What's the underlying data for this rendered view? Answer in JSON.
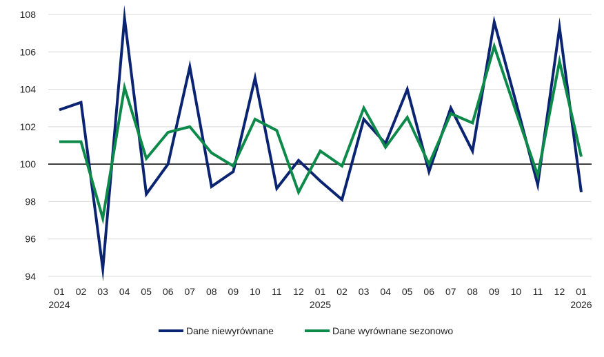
{
  "chart_data": {
    "type": "line",
    "title": "",
    "xlabel": "",
    "ylabel": "",
    "ylim": [
      94,
      108
    ],
    "yticks": [
      94,
      96,
      98,
      100,
      102,
      104,
      106,
      108
    ],
    "baseline": 100,
    "grid": true,
    "legend_position": "bottom",
    "categories": [
      "01",
      "02",
      "03",
      "04",
      "05",
      "06",
      "07",
      "08",
      "09",
      "10",
      "11",
      "12",
      "01",
      "02",
      "03",
      "04",
      "05",
      "06",
      "07",
      "08",
      "09",
      "10",
      "11",
      "12",
      "01"
    ],
    "year_labels": [
      {
        "index": 0,
        "label": "2024"
      },
      {
        "index": 12,
        "label": "2025"
      },
      {
        "index": 24,
        "label": "2026"
      }
    ],
    "series": [
      {
        "name": "Dane niewyrównane",
        "color": "#0a2472",
        "values": [
          102.9,
          103.3,
          94.4,
          107.8,
          98.4,
          100.0,
          105.2,
          98.8,
          99.6,
          104.6,
          98.7,
          100.2,
          99.1,
          98.1,
          102.4,
          101.1,
          104.0,
          99.6,
          103.0,
          100.7,
          107.6,
          103.3,
          98.9,
          107.3,
          98.5
        ]
      },
      {
        "name": "Dane wyrównane sezonowo",
        "color": "#0d8a4a",
        "values": [
          101.2,
          101.2,
          97.1,
          104.1,
          100.3,
          101.7,
          102.0,
          100.6,
          99.9,
          102.4,
          101.8,
          98.5,
          100.7,
          99.9,
          103.0,
          100.9,
          102.5,
          100.0,
          102.7,
          102.2,
          106.3,
          102.8,
          99.4,
          105.5,
          100.4
        ]
      }
    ]
  }
}
